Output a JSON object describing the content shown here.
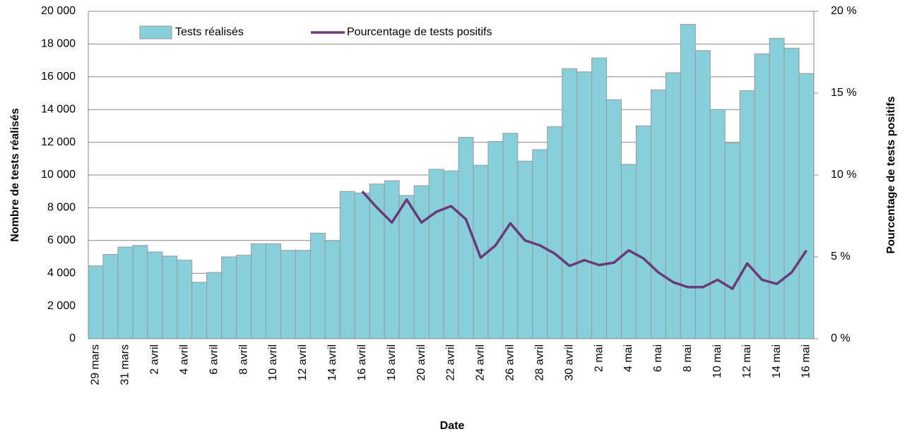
{
  "chart_data": {
    "type": "bar_line",
    "xlabel": "Date",
    "ylabel": "Nombre de tests réalisés",
    "y2label": "Pourcentage de tests positifs",
    "categories": [
      "29 mars",
      null,
      "31 mars",
      null,
      "2 avril",
      null,
      "4 avril",
      null,
      "6 avril",
      null,
      "8 avril",
      null,
      "10 avril",
      null,
      "12 avril",
      null,
      "14 avril",
      null,
      "16 avril",
      null,
      "18 avril",
      null,
      "20 avril",
      null,
      "22 avril",
      null,
      "24 avril",
      null,
      "26 avril",
      null,
      "28 avril",
      null,
      "30 avril",
      null,
      "2 mai",
      null,
      "4 mai",
      null,
      "6 mai",
      null,
      "8 mai",
      null,
      "10 mai",
      null,
      "12 mai",
      null,
      "14 mai",
      null,
      "16 mai"
    ],
    "series": [
      {
        "name": "Tests réalisés",
        "type": "bar",
        "color": "#86cfdb",
        "values": [
          4450,
          5150,
          5600,
          5700,
          5300,
          5050,
          4800,
          3450,
          4050,
          5000,
          5100,
          5800,
          5800,
          5400,
          5400,
          6450,
          6000,
          9000,
          8900,
          9450,
          9650,
          8750,
          9350,
          10350,
          10250,
          12300,
          10600,
          12050,
          12550,
          10850,
          11550,
          12950,
          16500,
          16300,
          17150,
          14600,
          10650,
          13000,
          15200,
          16250,
          19200,
          17600,
          14000,
          11950,
          15150,
          17400,
          18350,
          17750,
          16200
        ]
      },
      {
        "name": "Pourcentage de tests positifs",
        "type": "line",
        "axis": "y2",
        "color": "#6b3a78",
        "values": [
          null,
          null,
          null,
          null,
          null,
          null,
          null,
          null,
          null,
          null,
          null,
          null,
          null,
          null,
          null,
          null,
          null,
          null,
          9.0,
          8.0,
          7.1,
          8.5,
          7.1,
          7.75,
          8.1,
          7.3,
          4.95,
          5.7,
          7.05,
          6.0,
          5.7,
          5.2,
          4.45,
          4.8,
          4.5,
          4.65,
          5.4,
          4.9,
          4.05,
          3.45,
          3.15,
          3.15,
          3.6,
          3.05,
          4.6,
          3.6,
          3.35,
          4.05,
          5.4
        ]
      }
    ],
    "ylim": [
      0,
      20000
    ],
    "yticks": [
      0,
      {
        "value": 2000,
        "label": "2 000"
      },
      {
        "value": 4000,
        "label": "4 000"
      },
      {
        "value": 6000,
        "label": "6 000"
      },
      {
        "value": 8000,
        "label": "8 000"
      },
      {
        "value": 10000,
        "label": "10 000"
      },
      {
        "value": 12000,
        "label": "12 000"
      },
      {
        "value": 14000,
        "label": "14 000"
      },
      {
        "value": 16000,
        "label": "16 000"
      },
      {
        "value": 18000,
        "label": "18 000"
      },
      {
        "value": 20000,
        "label": "20 000"
      }
    ],
    "y2lim": [
      0,
      20
    ],
    "y2ticks": [
      {
        "value": 0,
        "label": "0 %"
      },
      {
        "value": 5,
        "label": "5 %"
      },
      {
        "value": 10,
        "label": "10 %"
      },
      {
        "value": 15,
        "label": "15 %"
      },
      {
        "value": 20,
        "label": "20 %"
      }
    ],
    "grid": true,
    "legend": "top"
  }
}
